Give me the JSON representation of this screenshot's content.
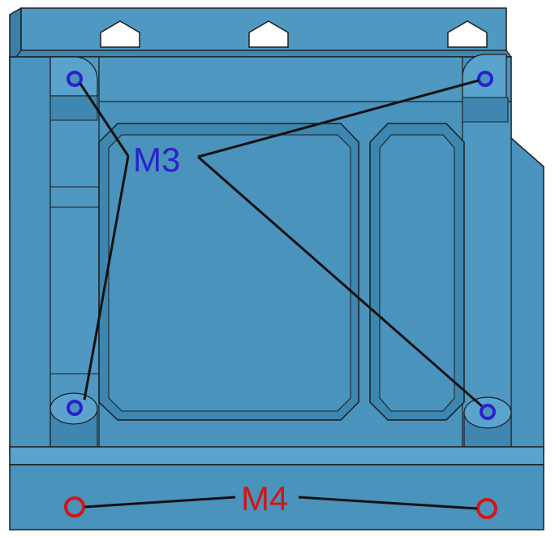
{
  "labels": {
    "m3": "M3",
    "m4": "M4"
  },
  "colors": {
    "part_fill": "#4a93bd",
    "part_light": "#5aa3cc",
    "part_dark": "#3a7fa8",
    "edge": "#1d1d1d",
    "m3_color": "#2a22cc",
    "m4_color": "#d41414",
    "leader": "#111111"
  },
  "holes": {
    "m3_count": 4,
    "m4_count": 2
  }
}
